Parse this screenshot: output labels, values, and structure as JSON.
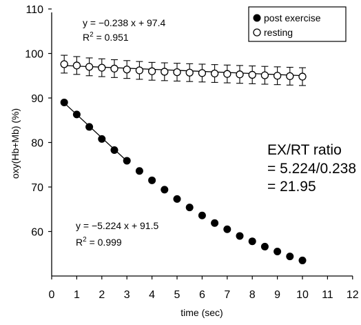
{
  "chart_data": {
    "type": "scatter",
    "xlabel": "time (sec)",
    "ylabel": "oxy(Hb+Mb) (%)",
    "xlim": [
      0,
      12
    ],
    "ylim": [
      50,
      110
    ],
    "xticks": [
      "0",
      "1",
      "2",
      "3",
      "4",
      "5",
      "6",
      "7",
      "8",
      "9",
      "10",
      "11",
      "12"
    ],
    "yticks": [
      "60",
      "70",
      "80",
      "90",
      "100",
      "110"
    ],
    "grid": false,
    "legend_position": "top-right",
    "series": [
      {
        "name": "post exercise",
        "marker": "filled-circle",
        "x": [
          0.5,
          1,
          1.5,
          2,
          2.5,
          3,
          3.5,
          4,
          4.5,
          5,
          5.5,
          6,
          6.5,
          7,
          7.5,
          8,
          8.5,
          9,
          9.5,
          10
        ],
        "y": [
          89,
          86.3,
          83.5,
          80.8,
          78.3,
          75.9,
          73.6,
          71.5,
          69.4,
          67.3,
          65.4,
          63.6,
          61.9,
          60.5,
          59,
          57.8,
          56.6,
          55.5,
          54.4,
          53.5
        ]
      },
      {
        "name": "resting",
        "marker": "open-circle",
        "x": [
          0.5,
          1,
          1.5,
          2,
          2.5,
          3,
          3.5,
          4,
          4.5,
          5,
          5.5,
          6,
          6.5,
          7,
          7.5,
          8,
          8.5,
          9,
          9.5,
          10
        ],
        "y": [
          97.6,
          97.3,
          97.0,
          96.8,
          96.6,
          96.4,
          96.2,
          96.0,
          95.9,
          95.8,
          95.7,
          95.6,
          95.5,
          95.4,
          95.3,
          95.2,
          95.1,
          95.0,
          94.9,
          94.8
        ],
        "error": 2
      }
    ],
    "fit_lines": [
      {
        "series": "post exercise",
        "x_range": [
          0.5,
          3
        ],
        "slope": -5.224,
        "intercept": 91.5
      },
      {
        "series": "resting",
        "x_range": [
          0.5,
          10
        ],
        "slope": -0.238,
        "intercept": 97.4
      }
    ],
    "annotations": {
      "rest_eq": "y = −0.238 x + 97.4",
      "rest_r2_prefix": "R",
      "rest_r2_sup": "2",
      "rest_r2_value": " = 0.951",
      "post_eq": "y = −5.224 x + 91.5",
      "post_r2_prefix": "R",
      "post_r2_sup": "2",
      "post_r2_value": " = 0.999",
      "ratio_title": "EX/RT ratio",
      "ratio_line1": "= 5.224/0.238",
      "ratio_line2": "= 21.95"
    }
  }
}
